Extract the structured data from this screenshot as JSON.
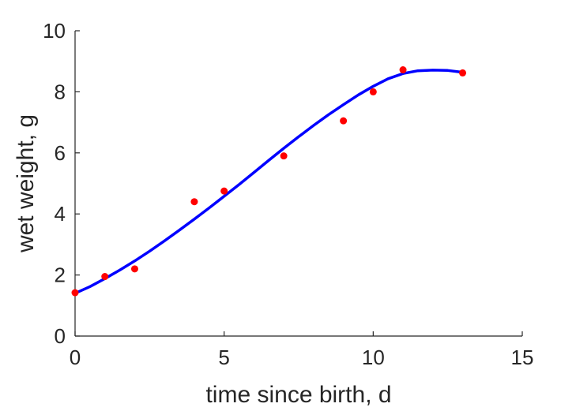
{
  "chart_data": {
    "type": "scatter",
    "xlabel": "time since birth, d",
    "ylabel": "wet weight, g",
    "xlim": [
      0,
      15
    ],
    "ylim": [
      0,
      10
    ],
    "xticks": [
      "0",
      "5",
      "10",
      "15"
    ],
    "yticks": [
      "0",
      "2",
      "4",
      "6",
      "8",
      "10"
    ],
    "grid": false,
    "legend": "none",
    "colors": {
      "points": "#ff0000",
      "fit": "#0000ff",
      "axes": "#262626"
    },
    "series": [
      {
        "kind": "points",
        "x": [
          0,
          1,
          2,
          4,
          5,
          7,
          9,
          10,
          11,
          13
        ],
        "y": [
          1.42,
          1.95,
          2.2,
          4.4,
          4.75,
          5.9,
          7.05,
          8.0,
          8.72,
          8.62
        ]
      },
      {
        "kind": "line",
        "x": [
          0,
          0.5,
          1,
          1.5,
          2,
          2.5,
          3,
          3.5,
          4,
          4.5,
          5,
          5.5,
          6,
          6.5,
          7,
          7.5,
          8,
          8.5,
          9,
          9.5,
          10,
          10.5,
          11,
          11.5,
          12,
          12.5,
          13
        ],
        "y": [
          1.4,
          1.62,
          1.88,
          2.16,
          2.46,
          2.78,
          3.12,
          3.47,
          3.83,
          4.2,
          4.58,
          4.96,
          5.36,
          5.76,
          6.15,
          6.53,
          6.9,
          7.25,
          7.58,
          7.9,
          8.18,
          8.43,
          8.6,
          8.69,
          8.71,
          8.7,
          8.64
        ]
      }
    ]
  }
}
